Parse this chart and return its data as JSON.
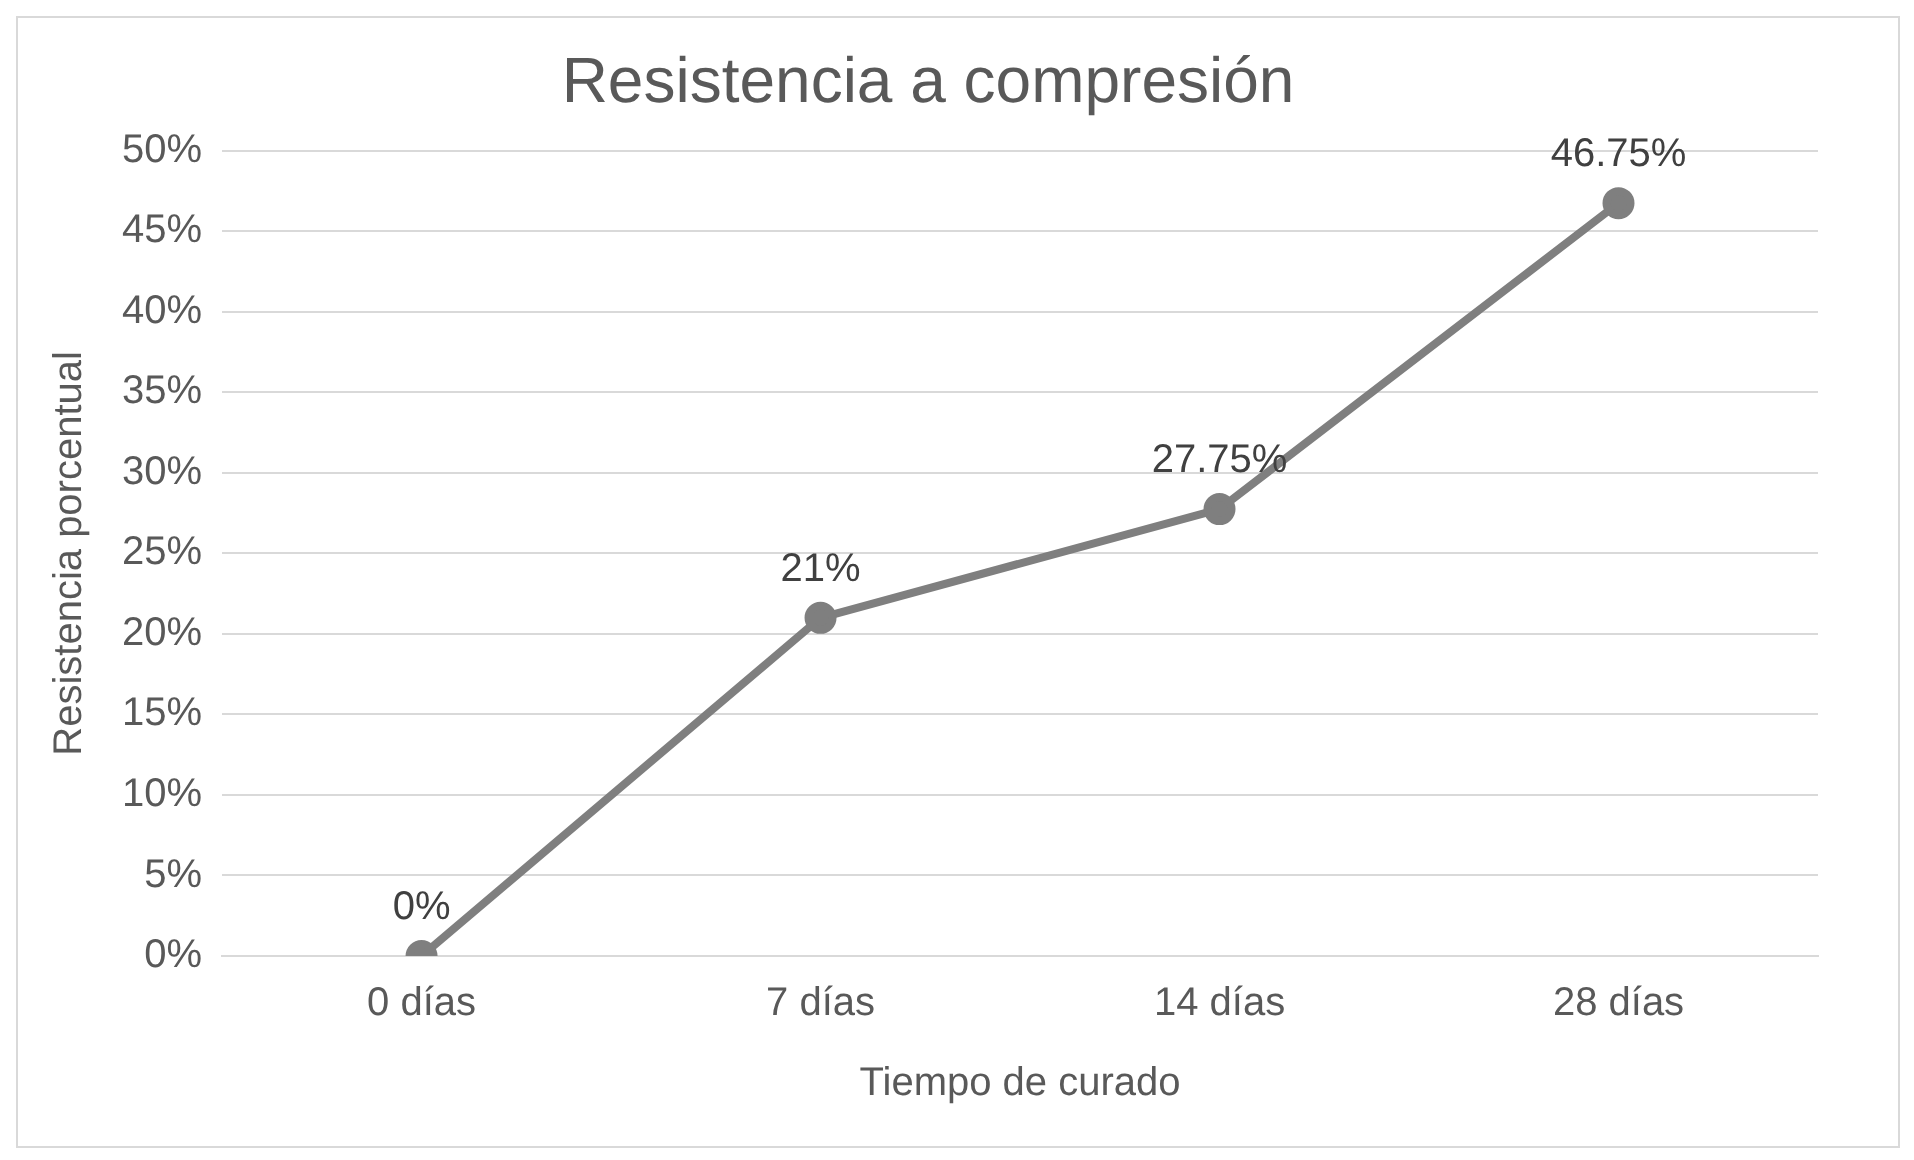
{
  "chart_data": {
    "type": "line",
    "title": "Resistencia a compresión",
    "xlabel": "Tiempo de curado",
    "ylabel": "Resistencia porcentual",
    "categories": [
      "0 días",
      "7 días",
      "14 días",
      "28 días"
    ],
    "series": [
      {
        "color": "#7f7f7f",
        "values": [
          0,
          21,
          27.75,
          46.75
        ],
        "value_labels": [
          "0%",
          "21%",
          "27.75%",
          "46.75%"
        ]
      }
    ],
    "ylim": [
      0,
      50
    ],
    "yticks": [
      {
        "value": 0,
        "label": "0%"
      },
      {
        "value": 5,
        "label": "5%"
      },
      {
        "value": 10,
        "label": "10%"
      },
      {
        "value": 15,
        "label": "15%"
      },
      {
        "value": 20,
        "label": "20%"
      },
      {
        "value": 25,
        "label": "25%"
      },
      {
        "value": 30,
        "label": "30%"
      },
      {
        "value": 35,
        "label": "35%"
      },
      {
        "value": 40,
        "label": "40%"
      },
      {
        "value": 45,
        "label": "45%"
      },
      {
        "value": 50,
        "label": "50%"
      }
    ],
    "grid": "y",
    "legend": false,
    "marker": "circle",
    "line_style": "solid"
  }
}
